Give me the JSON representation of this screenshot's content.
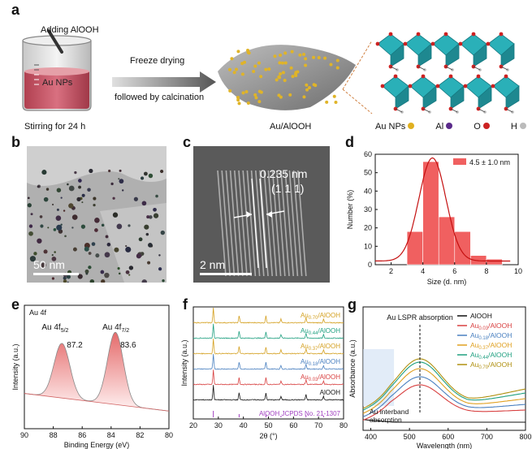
{
  "panel_a": {
    "letter": "a",
    "beaker_text_top": "Adding AlOOH",
    "beaker_text_np": "Au NPs",
    "beaker_caption": "Stirring for 24 h",
    "arrow_line1": "Freeze drying",
    "arrow_line2": "followed by calcination",
    "support_caption": "Au/AlOOH",
    "legend": [
      {
        "label": "Au NPs",
        "color": "#e0b020"
      },
      {
        "label": "Al",
        "color": "#5a2a8a"
      },
      {
        "label": "O",
        "color": "#cc2222"
      },
      {
        "label": "H",
        "color": "#bbbbbb"
      }
    ]
  },
  "panel_b": {
    "letter": "b",
    "scale": "50 nm"
  },
  "panel_c": {
    "letter": "c",
    "spacing": "0.235 nm",
    "plane": "(1 1 1)",
    "scale": "2 nm"
  },
  "panel_d": {
    "letter": "d",
    "chart_data": {
      "type": "bar",
      "legend": "4.5 ± 1.0 nm",
      "xlabel": "Size (d. nm)",
      "ylabel": "Number (%)",
      "xticks": [
        "2",
        "4",
        "6",
        "8",
        "10"
      ],
      "yticks": [
        "0",
        "10",
        "20",
        "30",
        "40",
        "50",
        "60"
      ],
      "xlim": [
        1,
        10
      ],
      "ylim": [
        0,
        60
      ],
      "bins": [
        {
          "x": 3.5,
          "value": 18
        },
        {
          "x": 4.5,
          "value": 56
        },
        {
          "x": 5.5,
          "value": 26
        },
        {
          "x": 6.5,
          "value": 18
        },
        {
          "x": 7.5,
          "value": 5
        },
        {
          "x": 8.5,
          "value": 3
        }
      ],
      "bin_width": 1,
      "bar_color": "#f06060"
    }
  },
  "panel_e": {
    "letter": "e",
    "chart_data": {
      "type": "line",
      "title": "Au 4f",
      "xlabel": "Binding Energy (eV)",
      "ylabel": "Intensity (a.u.)",
      "xticks": [
        "90",
        "88",
        "86",
        "84",
        "82",
        "80"
      ],
      "xlim": [
        90,
        80
      ],
      "peaks": [
        {
          "label_main": "Au 4f",
          "label_sub": "5/2",
          "position": "87.2"
        },
        {
          "label_main": "Au 4f",
          "label_sub": "7/2",
          "position": "83.6"
        }
      ]
    }
  },
  "panel_f": {
    "letter": "f",
    "chart_data": {
      "type": "line",
      "xlabel": "2θ (°)",
      "ylabel": "Intensity (a.u.)",
      "xticks": [
        "20",
        "30",
        "40",
        "50",
        "60",
        "70",
        "80"
      ],
      "xlim": [
        20,
        80
      ],
      "series": [
        {
          "name": "Au",
          "sub": "0.70",
          "suffix": "/AlOOH",
          "color": "#d4a020"
        },
        {
          "name": "Au",
          "sub": "0.44",
          "suffix": "/AlOOH",
          "color": "#20a080"
        },
        {
          "name": "Au",
          "sub": "0.37",
          "suffix": "/AlOOH",
          "color": "#d4a020"
        },
        {
          "name": "Au",
          "sub": "0.18",
          "suffix": "/AlOOH",
          "color": "#4a80c0"
        },
        {
          "name": "Au",
          "sub": "0.03",
          "suffix": "/AlOOH",
          "color": "#d84040"
        },
        {
          "name": "AlOOH",
          "sub": "",
          "suffix": "",
          "color": "#111111"
        }
      ],
      "reference_label": "AlOOH JCPDS No. 21-1307",
      "reference_color": "#a040c0"
    }
  },
  "panel_g": {
    "letter": "g",
    "chart_data": {
      "type": "line",
      "annotation_top": "Au LSPR absorption",
      "annotation_bottom_1": "Au interband",
      "annotation_bottom_2": "absorption",
      "xlabel": "Wavelength (nm)",
      "ylabel": "Absorbance (a.u.)",
      "xticks": [
        "400",
        "500",
        "600",
        "700",
        "800"
      ],
      "xlim": [
        380,
        800
      ],
      "series": [
        {
          "name": "AlOOH",
          "sub": "",
          "suffix": "",
          "color": "#111111"
        },
        {
          "name": "Au",
          "sub": "0.03",
          "suffix": "/AlOOH",
          "color": "#d84040"
        },
        {
          "name": "Au",
          "sub": "0.18",
          "suffix": "/AlOOH",
          "color": "#4a80c0"
        },
        {
          "name": "Au",
          "sub": "0.37",
          "suffix": "/AlOOH",
          "color": "#e0a020"
        },
        {
          "name": "Au",
          "sub": "0.44",
          "suffix": "/AlOOH",
          "color": "#20a080"
        },
        {
          "name": "Au",
          "sub": "0.70",
          "suffix": "/AlOOH",
          "color": "#b09010"
        }
      ]
    }
  }
}
